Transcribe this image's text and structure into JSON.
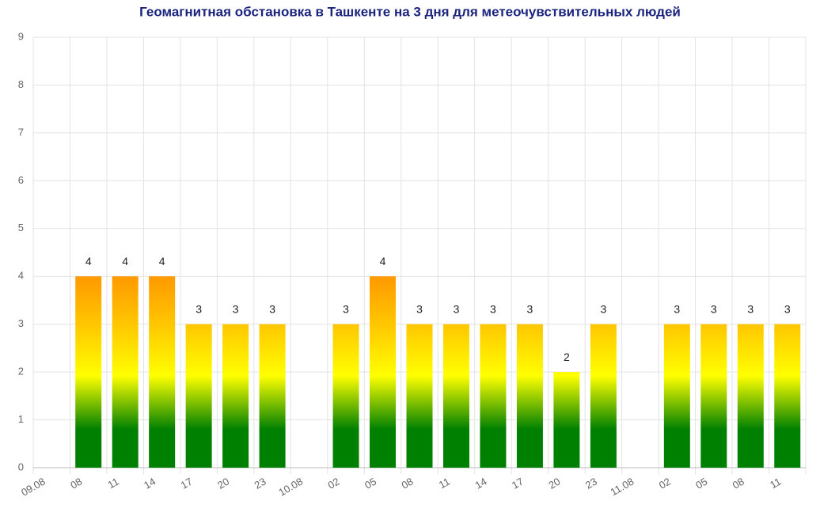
{
  "chart_data": {
    "type": "bar",
    "title": "Геомагнитная обстановка в Ташкенте на 3 дня для метеочувствительных людей",
    "categories": [
      "09.08",
      "08",
      "11",
      "14",
      "17",
      "20",
      "23",
      "10.08",
      "02",
      "05",
      "08",
      "11",
      "14",
      "17",
      "20",
      "23",
      "11.08",
      "02",
      "05",
      "08",
      "11"
    ],
    "values": [
      null,
      4,
      4,
      4,
      3,
      3,
      3,
      null,
      3,
      4,
      3,
      3,
      3,
      3,
      2,
      3,
      null,
      3,
      3,
      3,
      3
    ],
    "gradient_colors": [
      "#008000",
      "#ffff00",
      "#ff9900"
    ],
    "ylim": [
      0,
      9
    ],
    "yticks": [
      0,
      1,
      2,
      3,
      4,
      5,
      6,
      7,
      8,
      9
    ],
    "grid": true
  }
}
